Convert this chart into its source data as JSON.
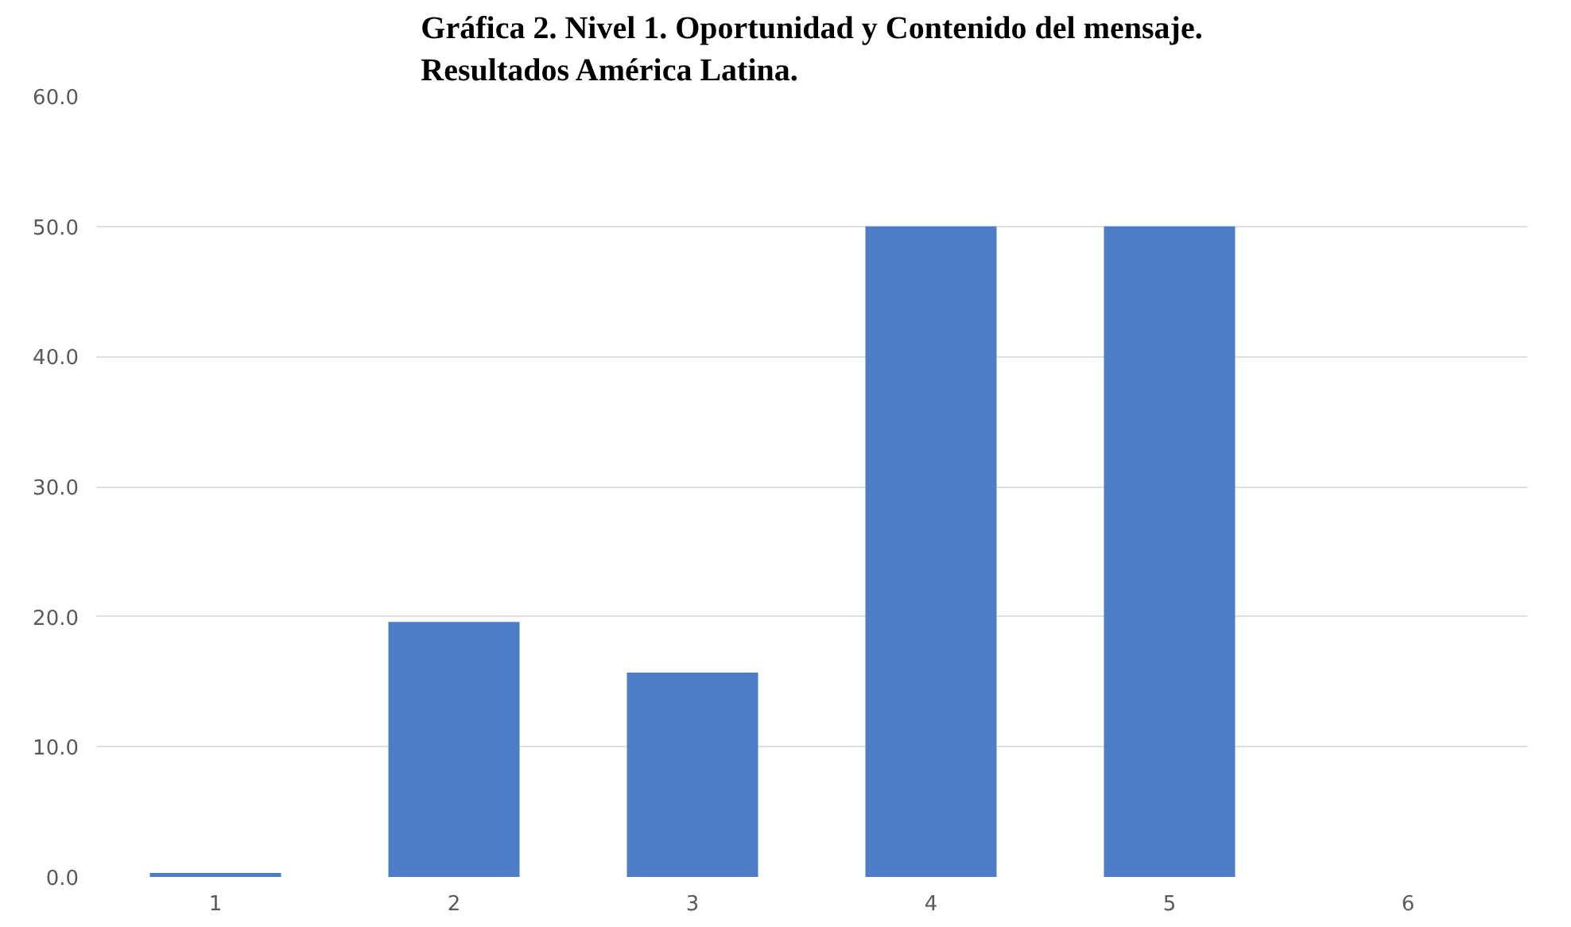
{
  "chart_data": {
    "type": "bar",
    "title": "Gráfica 2. Nivel 1. Oportunidad y Contenido del mensaje.\nResultados América Latina.",
    "categories": [
      "1",
      "2",
      "3",
      "4",
      "5",
      "6"
    ],
    "values": [
      0.3,
      19.6,
      15.7,
      50.0,
      50.0,
      0.0
    ],
    "color": "#4e7dc8",
    "ylim": [
      0,
      60
    ],
    "yticks": [
      {
        "value": 0,
        "label": "0.0"
      },
      {
        "value": 10,
        "label": "10.0"
      },
      {
        "value": 20,
        "label": "20.0"
      },
      {
        "value": 30,
        "label": "30.0"
      },
      {
        "value": 40,
        "label": "40.0"
      },
      {
        "value": 50,
        "label": "50.0"
      },
      {
        "value": 60,
        "label": "60.0"
      }
    ],
    "grid": "y"
  }
}
